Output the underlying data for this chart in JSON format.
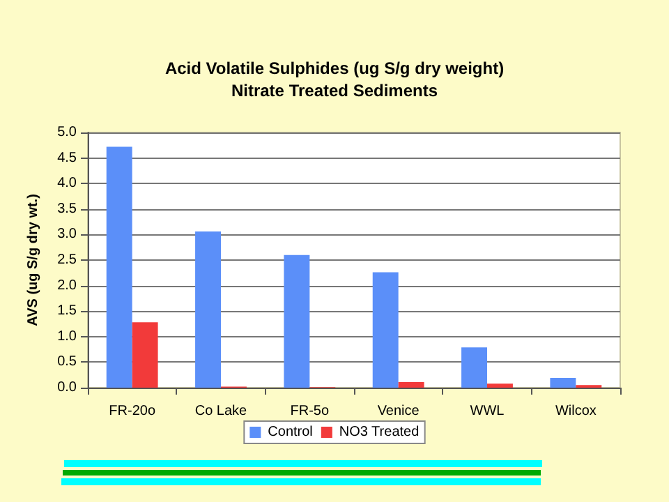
{
  "chart_data": {
    "type": "bar",
    "title": "Acid Volatile Sulphides (ug S/g dry weight)",
    "subtitle": "Nitrate Treated Sediments",
    "ylabel": "AVS (ug S/g dry wt.)",
    "categories": [
      "FR-20o",
      "Co Lake",
      "FR-5o",
      "Venice",
      "WWL",
      "Wilcox"
    ],
    "series": [
      {
        "name": "Control",
        "color": "#5b8ff9",
        "values": [
          4.72,
          3.06,
          2.6,
          2.26,
          0.79,
          0.19
        ]
      },
      {
        "name": "NO3 Treated",
        "color": "#f23a3a",
        "values": [
          1.28,
          0.02,
          0.01,
          0.11,
          0.08,
          0.05
        ]
      }
    ],
    "ylim": [
      0,
      5
    ],
    "yticks": [
      {
        "value": 0,
        "label": "0.0"
      },
      0.5,
      {
        "value": 1,
        "label": "1.0"
      },
      1.5,
      {
        "value": 2,
        "label": "2.0"
      },
      2.5,
      {
        "value": 3,
        "label": "3.0"
      },
      3.5,
      {
        "value": 4,
        "label": "4.0"
      },
      4.5,
      {
        "value": 5,
        "label": "5.0"
      }
    ],
    "grid": "y",
    "legend": "bottom"
  }
}
